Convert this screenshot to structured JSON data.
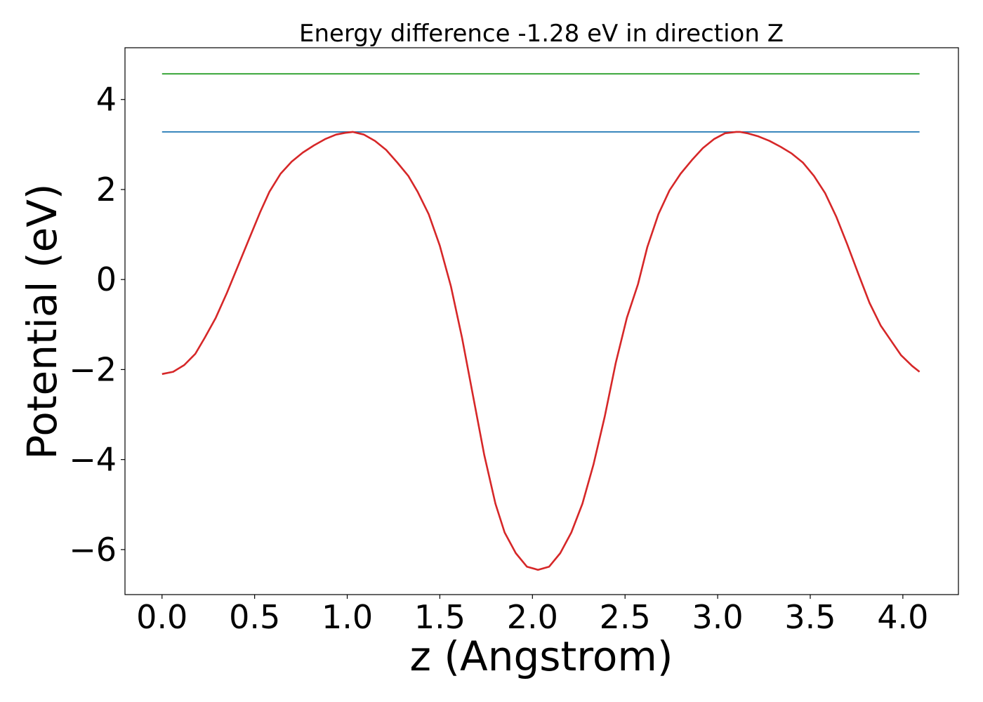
{
  "chart_data": {
    "type": "line",
    "title": "Energy difference -1.28 eV in direction Z",
    "xlabel": "z (Angstrom)",
    "ylabel": "Potential (eV)",
    "xlim": [
      -0.2,
      4.3
    ],
    "ylim": [
      -7.0,
      5.15
    ],
    "xticks": [
      0.0,
      0.5,
      1.0,
      1.5,
      2.0,
      2.5,
      3.0,
      3.5,
      4.0
    ],
    "xtick_labels": [
      "0.0",
      "0.5",
      "1.0",
      "1.5",
      "2.0",
      "2.5",
      "3.0",
      "3.5",
      "4.0"
    ],
    "yticks": [
      4,
      2,
      0,
      -2,
      -4,
      -6
    ],
    "ytick_labels": [
      "4",
      "2",
      "0",
      "−2",
      "−4",
      "−6"
    ],
    "grid": false,
    "series": [
      {
        "color": "#2ca02c",
        "x": [
          0.0,
          4.09
        ],
        "y": [
          4.57,
          4.57
        ]
      },
      {
        "color": "#1f77b4",
        "x": [
          0.0,
          4.09
        ],
        "y": [
          3.28,
          3.28
        ]
      },
      {
        "color": "#d62728",
        "x": [
          0.0,
          0.06,
          0.12,
          0.18,
          0.23,
          0.29,
          0.35,
          0.41,
          0.47,
          0.53,
          0.58,
          0.64,
          0.7,
          0.76,
          0.82,
          0.88,
          0.94,
          0.99,
          1.03,
          1.09,
          1.15,
          1.21,
          1.27,
          1.33,
          1.38,
          1.44,
          1.5,
          1.56,
          1.62,
          1.68,
          1.74,
          1.8,
          1.85,
          1.91,
          1.97,
          2.03,
          2.09,
          2.15,
          2.21,
          2.27,
          2.33,
          2.39,
          2.45,
          2.51,
          2.57,
          2.62,
          2.68,
          2.74,
          2.8,
          2.86,
          2.92,
          2.98,
          3.04,
          3.1,
          3.12,
          3.16,
          3.22,
          3.28,
          3.34,
          3.4,
          3.46,
          3.52,
          3.58,
          3.64,
          3.7,
          3.76,
          3.82,
          3.88,
          3.94,
          3.99,
          4.05,
          4.09
        ],
        "y": [
          -2.1,
          -2.05,
          -1.9,
          -1.65,
          -1.3,
          -0.85,
          -0.3,
          0.3,
          0.9,
          1.5,
          1.95,
          2.35,
          2.62,
          2.82,
          2.98,
          3.12,
          3.22,
          3.26,
          3.28,
          3.22,
          3.08,
          2.88,
          2.6,
          2.3,
          1.95,
          1.45,
          0.75,
          -0.15,
          -1.3,
          -2.6,
          -3.9,
          -4.98,
          -5.62,
          -6.08,
          -6.38,
          -6.45,
          -6.38,
          -6.08,
          -5.62,
          -4.98,
          -4.1,
          -3.05,
          -1.85,
          -0.85,
          -0.1,
          0.72,
          1.45,
          1.98,
          2.35,
          2.65,
          2.92,
          3.12,
          3.25,
          3.28,
          3.28,
          3.25,
          3.18,
          3.08,
          2.95,
          2.8,
          2.6,
          2.3,
          1.92,
          1.4,
          0.78,
          0.12,
          -0.52,
          -1.02,
          -1.38,
          -1.68,
          -1.92,
          -2.05
        ]
      }
    ]
  }
}
